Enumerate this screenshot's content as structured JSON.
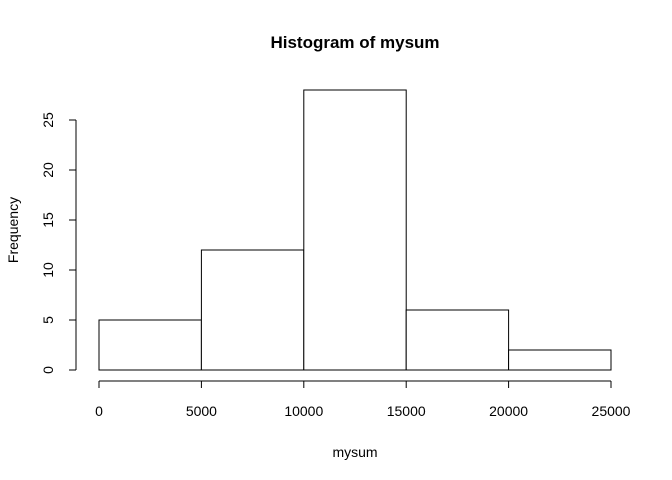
{
  "chart_data": {
    "type": "bar",
    "title": "Histogram of mysum",
    "xlabel": "mysum",
    "ylabel": "Frequency",
    "bins": [
      {
        "start": 0,
        "end": 5000,
        "count": 5
      },
      {
        "start": 5000,
        "end": 10000,
        "count": 12
      },
      {
        "start": 10000,
        "end": 15000,
        "count": 28
      },
      {
        "start": 15000,
        "end": 20000,
        "count": 6
      },
      {
        "start": 20000,
        "end": 25000,
        "count": 2
      }
    ],
    "xlim": [
      0,
      25000
    ],
    "ylim": [
      0,
      28
    ],
    "xticks": [
      "0",
      "5000",
      "10000",
      "15000",
      "20000",
      "25000"
    ],
    "yticks": [
      "0",
      "5",
      "10",
      "15",
      "20",
      "25"
    ],
    "grid": false
  }
}
